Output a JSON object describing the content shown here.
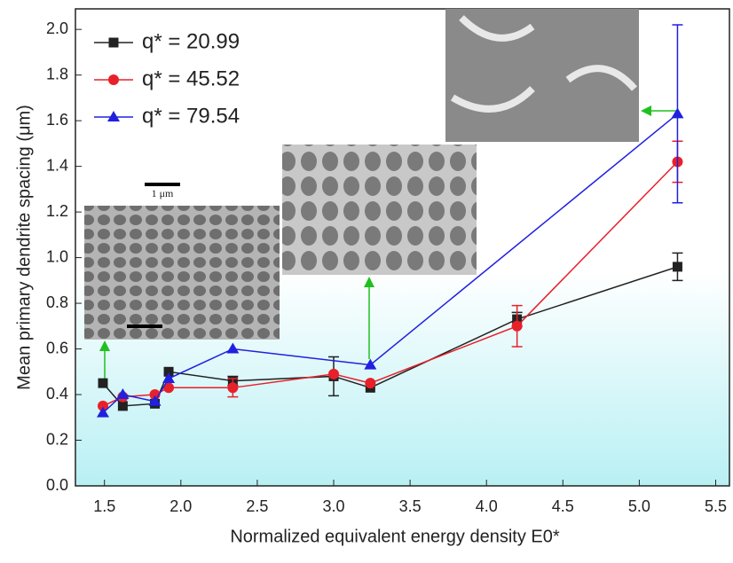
{
  "chart_data": {
    "type": "line",
    "x_label": "Normalized equivalent energy density E0*",
    "y_label": "Mean primary dendrite spacing (μm)",
    "annotations": [
      "1 μm"
    ],
    "xlim": [
      1.31,
      5.59
    ],
    "ylim": [
      0,
      2.09
    ],
    "xticks": [
      1.5,
      {
        "value": 2,
        "label": "2.0"
      },
      2.5,
      {
        "value": 3,
        "label": "3.0"
      },
      3.5,
      {
        "value": 4,
        "label": "4.0"
      },
      4.5,
      {
        "value": 5,
        "label": "5.0"
      },
      5.5
    ],
    "yticks": [
      {
        "value": 0,
        "label": "0.0"
      },
      0.2,
      0.4,
      0.6,
      0.8,
      {
        "value": 1,
        "label": "1.0"
      },
      1.2,
      1.4,
      1.6,
      1.8,
      {
        "value": 2,
        "label": "2.0"
      }
    ],
    "legend": "upper left",
    "series": [
      {
        "name": "q* = 20.99",
        "color": "#222222",
        "marker": "square",
        "x": [
          1.49,
          1.62,
          1.83,
          1.92,
          2.34,
          3.0,
          3.24,
          4.2,
          5.25
        ],
        "values": [
          0.45,
          0.35,
          0.36,
          0.5,
          0.46,
          0.48,
          0.43,
          0.73,
          0.96
        ],
        "errors": [
          null,
          null,
          null,
          null,
          0.02,
          0.085,
          null,
          0.03,
          0.06
        ]
      },
      {
        "name": "q* = 45.52",
        "color": "#e8202a",
        "marker": "circle",
        "x": [
          1.49,
          1.62,
          1.83,
          1.92,
          2.34,
          3.0,
          3.24,
          4.2,
          5.25
        ],
        "values": [
          0.35,
          0.39,
          0.4,
          0.43,
          0.43,
          0.49,
          0.45,
          0.7,
          1.42
        ],
        "errors": [
          null,
          null,
          null,
          null,
          0.04,
          null,
          null,
          0.09,
          0.09
        ]
      },
      {
        "name": "q* = 79.54",
        "color": "#2020e0",
        "marker": "triangle",
        "x": [
          1.49,
          1.62,
          1.83,
          1.92,
          2.34,
          3.24,
          5.25
        ],
        "values": [
          0.32,
          0.4,
          0.37,
          0.47,
          0.6,
          0.53,
          1.63
        ],
        "errors": [
          null,
          null,
          null,
          null,
          null,
          null,
          0.39
        ]
      }
    ]
  }
}
